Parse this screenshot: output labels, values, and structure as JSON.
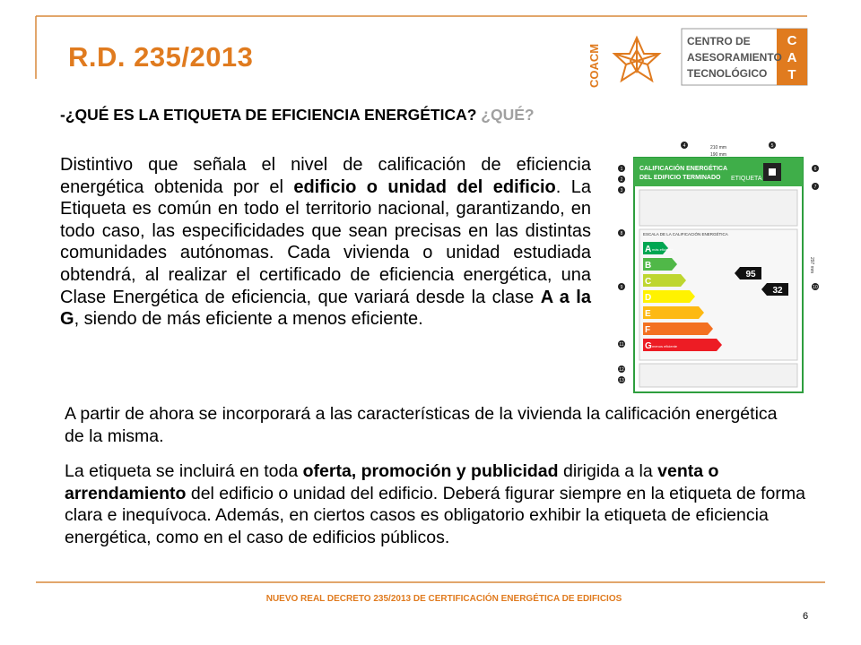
{
  "header": {
    "title": "R.D. 235/2013",
    "logo_left": "COACM",
    "logo_right_lines": [
      "CENTRO DE",
      "ASESORAMIENTO",
      "TECNOLÓGICO"
    ],
    "logo_letters": [
      "C",
      "A",
      "T"
    ]
  },
  "heading": {
    "text": "-¿QUÉ ES LA ETIQUETA DE EFICIENCIA ENERGÉTICA?",
    "aside": "¿QUÉ?"
  },
  "paragraphs": [
    [
      {
        "text": "Distintivo que señala el nivel de calificación de eficiencia energética obtenida por el "
      },
      {
        "text": "edificio o unidad del edificio",
        "bold": true
      },
      {
        "text": ". La Etiqueta es común en todo el territorio nacional, garantizando, en todo caso, las especificidades que sean precisas en las distintas comunidades autónomas. Cada vivienda o unidad estudiada obtendrá, al realizar el certificado de eficiencia energética, una Clase Energética de eficiencia, que variará desde la clase "
      },
      {
        "text": "A a la G",
        "bold": true
      },
      {
        "text": ", siendo de más eficiente a menos eficiente."
      }
    ],
    [
      {
        "text": "A partir de ahora se incorporará a  las características de la vivienda la calificación energética de la misma."
      }
    ],
    [
      {
        "text": "La etiqueta se incluirá en toda "
      },
      {
        "text": "oferta, promoción y publicidad",
        "bold": true
      },
      {
        "text": " dirigida a la "
      },
      {
        "text": "venta o arrendamiento",
        "bold": true
      },
      {
        "text": " del edificio o unidad del edificio. Deberá figurar siempre en la etiqueta de forma clara e inequívoca. Además, en ciertos casos es obligatorio exhibir la etiqueta de eficiencia energética, como en el caso de edificios públicos."
      }
    ]
  ],
  "label": {
    "title_lines": [
      "CALIFICACIÓN ENERGÉTICA",
      "DEL EDIFICIO TERMINADO"
    ],
    "tag": "ETIQUETA",
    "dims": [
      "210 mm",
      "190 mm",
      "297 mm"
    ],
    "scale_title": "ESCALA DE LA CALIFICACIÓN ENERGÉTICA",
    "classes": [
      "A",
      "B",
      "C",
      "D",
      "E",
      "F",
      "G"
    ],
    "best": "más eficiente",
    "worst": "menos eficiente",
    "ratings": [
      "95",
      "32"
    ],
    "markers": [
      "1",
      "2",
      "3",
      "4",
      "5",
      "6",
      "7",
      "8",
      "9",
      "10",
      "11",
      "12",
      "13"
    ]
  },
  "footer": {
    "text": "NUEVO REAL DECRETO 235/2013 DE CERTIFICACIÓN ENERGÉTICA DE EDIFICIOS",
    "page": "6"
  }
}
